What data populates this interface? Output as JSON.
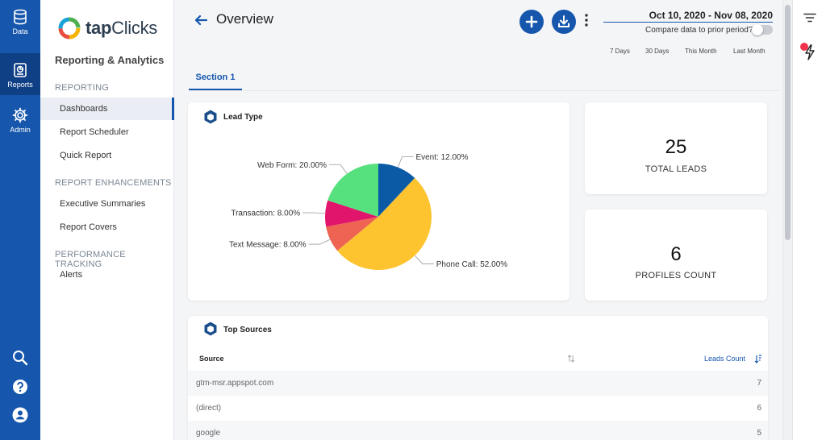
{
  "rail": {
    "items": [
      {
        "label": "Data",
        "icon": "database-icon"
      },
      {
        "label": "Reports",
        "icon": "reports-icon"
      },
      {
        "label": "Admin",
        "icon": "gear-icon"
      }
    ],
    "bottom_icons": [
      "search-icon",
      "help-icon",
      "user-icon"
    ]
  },
  "brand": {
    "logo_text_bold": "tap",
    "logo_text": "Clicks"
  },
  "sidebar": {
    "title": "Reporting & Analytics",
    "sections": [
      {
        "label": "REPORTING",
        "items": [
          "Dashboards",
          "Report Scheduler",
          "Quick Report"
        ]
      },
      {
        "label": "REPORT ENHANCEMENTS",
        "items": [
          "Executive Summaries",
          "Report Covers"
        ]
      },
      {
        "label": "PERFORMANCE TRACKING",
        "items": [
          "Alerts"
        ]
      }
    ],
    "active_item": "Dashboards"
  },
  "header": {
    "title": "Overview",
    "date_range": "Oct 10, 2020 - Nov 08, 2020",
    "compare_label": "Compare data to prior period?",
    "compare_enabled": false,
    "quick_ranges": [
      "7 Days",
      "30 Days",
      "This Month",
      "Last Month"
    ]
  },
  "tabs": [
    {
      "label": "Section 1",
      "active": true
    }
  ],
  "lead_type": {
    "title": "Lead Type",
    "chart_data": {
      "type": "pie",
      "slices": [
        {
          "label": "Event: 12.00%",
          "value": 12,
          "color": "#0a5aa6"
        },
        {
          "label": "Phone Call: 52.00%",
          "value": 52,
          "color": "#fec42f"
        },
        {
          "label": "Text Message: 8.00%",
          "value": 8,
          "color": "#ee6352"
        },
        {
          "label": "Transaction: 8.00%",
          "value": 8,
          "color": "#e2156c"
        },
        {
          "label": "Web Form: 20.00%",
          "value": 20,
          "color": "#57e07e"
        }
      ]
    }
  },
  "kpis": [
    {
      "value": "25",
      "label": "TOTAL LEADS"
    },
    {
      "value": "6",
      "label": "PROFILES COUNT"
    }
  ],
  "top_sources": {
    "title": "Top Sources",
    "columns": [
      "Source",
      "Leads Count"
    ],
    "rows": [
      {
        "source": "gtm-msr.appspot.com",
        "count": "7"
      },
      {
        "source": "(direct)",
        "count": "6"
      },
      {
        "source": "google",
        "count": "5"
      }
    ]
  },
  "colors": {
    "primary": "#1657ad",
    "rail_active": "#0f3f85",
    "alert": "#f0334d"
  }
}
